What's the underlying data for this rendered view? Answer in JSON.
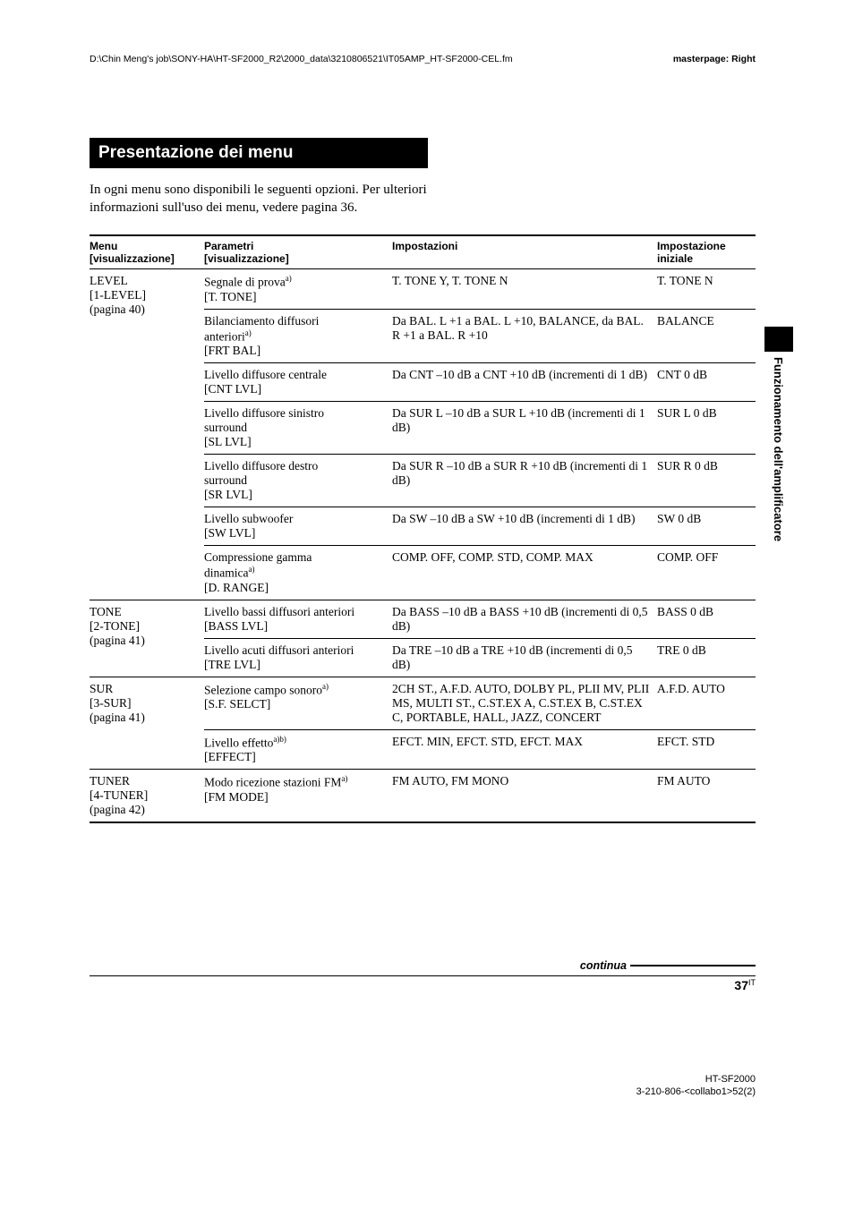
{
  "filepath": "D:\\Chin Meng's job\\SONY-HA\\HT-SF2000_R2\\2000_data\\3210806521\\IT05AMP_HT-SF2000-CEL.fm",
  "masterpage": "masterpage: Right",
  "heading": "Presentazione dei menu",
  "intro": "In ogni menu sono disponibili le seguenti opzioni. Per ulteriori informazioni sull'uso dei menu, vedere pagina 36.",
  "side_label": "Funzionamento dell'amplificatore",
  "table": {
    "headers": {
      "menu_line1": "Menu",
      "menu_line2": "[visualizzazione]",
      "param_line1": "Parametri",
      "param_line2": "[visualizzazione]",
      "imp": "Impostazioni",
      "init_line1": "Impostazione",
      "init_line2": "iniziale"
    },
    "level": {
      "menu_line1": "LEVEL",
      "menu_line2": "[1-LEVEL]",
      "menu_line3": "(pagina 40)",
      "r1": {
        "p1": "Segnale di prova",
        "sup": "a)",
        "p3": "[T. TONE]",
        "imp": "T. TONE Y, T. TONE N",
        "init": "T. TONE N"
      },
      "r2": {
        "p1": "Bilanciamento diffusori",
        "p2": "anteriori",
        "sup": "a)",
        "p3": "[FRT BAL]",
        "imp": "Da BAL. L +1 a BAL. L +10, BALANCE, da BAL. R +1 a BAL. R +10",
        "init": "BALANCE"
      },
      "r3": {
        "p1": "Livello diffusore centrale",
        "p2": "[CNT LVL]",
        "imp": "Da CNT –10 dB a CNT +10 dB (incrementi di 1 dB)",
        "init": "CNT 0 dB"
      },
      "r4": {
        "p1": "Livello diffusore sinistro",
        "p2": "surround",
        "p3": "[SL LVL]",
        "imp": "Da SUR L –10 dB a SUR L +10 dB (incrementi di 1 dB)",
        "init": "SUR L 0 dB"
      },
      "r5": {
        "p1": "Livello diffusore destro",
        "p2": "surround",
        "p3": "[SR LVL]",
        "imp": "Da SUR R –10 dB a SUR R +10 dB (incrementi di 1 dB)",
        "init": "SUR R 0 dB"
      },
      "r6": {
        "p1": "Livello subwoofer",
        "p2": "[SW LVL]",
        "imp": "Da SW –10 dB a SW +10 dB (incrementi di 1 dB)",
        "init": "SW 0 dB"
      },
      "r7": {
        "p1": "Compressione gamma",
        "p2": "dinamica",
        "sup": "a)",
        "p3": "[D. RANGE]",
        "imp": "COMP. OFF, COMP. STD, COMP. MAX",
        "init": "COMP. OFF"
      }
    },
    "tone": {
      "menu_line1": "TONE",
      "menu_line2": "[2-TONE]",
      "menu_line3": "(pagina 41)",
      "r1": {
        "p1": "Livello bassi diffusori anteriori",
        "p2": "[BASS LVL]",
        "imp": "Da BASS –10 dB a BASS +10 dB (incrementi di 0,5 dB)",
        "init": "BASS 0 dB"
      },
      "r2": {
        "p1": "Livello acuti diffusori anteriori",
        "p2": "[TRE LVL]",
        "imp": "Da TRE –10 dB a TRE +10 dB (incrementi di 0,5 dB)",
        "init": "TRE 0 dB"
      }
    },
    "sur": {
      "menu_line1": "SUR",
      "menu_line2": "[3-SUR]",
      "menu_line3": "(pagina 41)",
      "r1": {
        "p1": "Selezione campo sonoro",
        "sup": "a)",
        "p2": "[S.F. SELCT]",
        "imp": "2CH ST., A.F.D. AUTO, DOLBY PL, PLII MV, PLII MS, MULTI ST., C.ST.EX A, C.ST.EX B, C.ST.EX C, PORTABLE, HALL, JAZZ, CONCERT",
        "init": "A.F.D. AUTO"
      },
      "r2": {
        "p1": "Livello effetto",
        "sup": "a)b)",
        "p2": "[EFFECT]",
        "imp": "EFCT. MIN, EFCT. STD, EFCT. MAX",
        "init": "EFCT. STD"
      }
    },
    "tuner": {
      "menu_line1": "TUNER",
      "menu_line2": "[4-TUNER]",
      "menu_line3": "(pagina 42)",
      "r1": {
        "p1": "Modo ricezione stazioni FM",
        "sup": "a)",
        "p2": "[FM MODE]",
        "imp": "FM AUTO, FM MONO",
        "init": "FM AUTO"
      }
    }
  },
  "continua": "continua",
  "page_num": "37",
  "page_suffix": "IT",
  "footer_line1": "HT-SF2000",
  "footer_line2": "3-210-806-<collabo1>52(2)"
}
